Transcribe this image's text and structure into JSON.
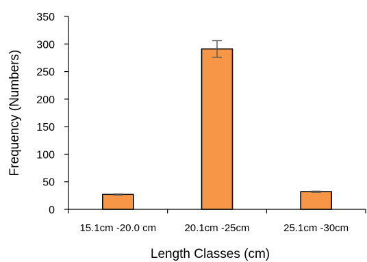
{
  "chart_data": {
    "type": "bar",
    "title": "",
    "xlabel": "Length Classes (cm)",
    "ylabel": "Frequency (Numbers)",
    "categories": [
      "15.1cm -20.0 cm",
      "20.1cm -25cm",
      "25.1cm -30cm"
    ],
    "series": [
      {
        "name": "",
        "values": [
          27,
          291,
          32
        ],
        "error": [
          1,
          15,
          1
        ],
        "color": "#F79646",
        "edge_color": "#000000"
      }
    ],
    "ylim": [
      0,
      350
    ],
    "yticks": [
      0,
      50,
      100,
      150,
      200,
      250,
      300,
      350
    ],
    "grid": false,
    "legend": "none"
  }
}
